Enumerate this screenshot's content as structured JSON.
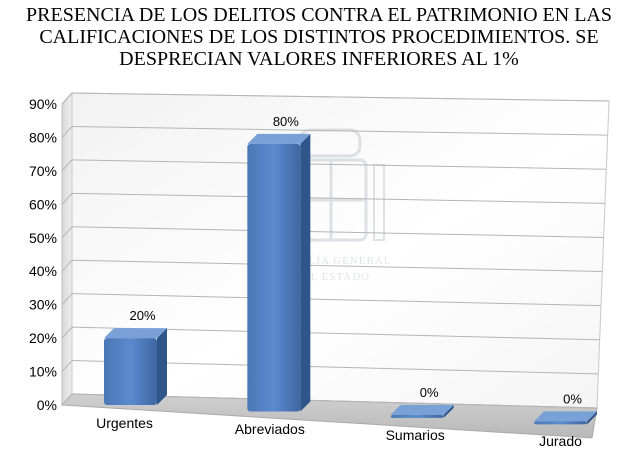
{
  "chart_data": {
    "type": "bar",
    "title_lines": [
      "PRESENCIA DE LOS DELITOS CONTRA EL PATRIMONIO EN LAS",
      "CALIFICACIONES DE LOS DISTINTOS PROCEDIMIENTOS. SE",
      "DESPRECIAN VALORES INFERIORES AL 1%"
    ],
    "categories": [
      "Urgentes",
      "Abreviados",
      "Sumarios",
      "Jurado"
    ],
    "values": [
      20,
      80,
      0,
      0
    ],
    "data_labels": [
      "20%",
      "80%",
      "0%",
      "0%"
    ],
    "ylim": [
      0,
      90
    ],
    "y_ticks": [
      "0%",
      "10%",
      "20%",
      "30%",
      "40%",
      "50%",
      "60%",
      "70%",
      "80%",
      "90%"
    ],
    "grid": true,
    "legend": "none",
    "bar_color": "#4f81bd",
    "watermark": [
      "FISCALÍA GENERAL",
      "DEL ESTADO"
    ]
  }
}
